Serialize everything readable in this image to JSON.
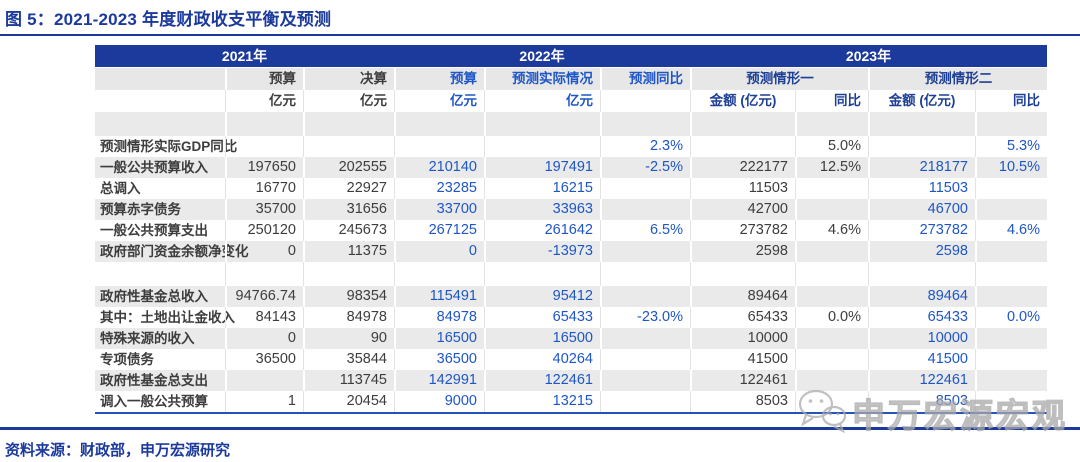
{
  "title": "图 5：2021-2023 年度财政收支平衡及预测",
  "source_note": "资料来源：财政部，申万宏源研究",
  "watermark": "申万宏源宏观",
  "colors": {
    "brand_navy": "#1c3a9c",
    "accent_blue": "#1e56c8",
    "text_dark": "#3d3d3d",
    "row_gray": "#eaeaea"
  },
  "table": {
    "year_groups": [
      {
        "label": "2021年"
      },
      {
        "label": "2022年"
      },
      {
        "label": "2023年"
      }
    ],
    "sub_headers": {
      "y21_budget": "预算",
      "y21_final": "决算",
      "y22_budget": "预算",
      "y22_actual": "预测实际情况",
      "y22_yoy": "预测同比",
      "scenario1": "预测情形一",
      "scenario2": "预测情形二"
    },
    "unit_headers": {
      "yi": "亿元",
      "amount": "金额 (亿元)",
      "yoy": "同比"
    },
    "col_classes": [
      "dark",
      "dark",
      "blue",
      "blue",
      "blue",
      "dark",
      "dark",
      "blue",
      "blue"
    ],
    "rows": [
      {
        "label": "",
        "bg": "gray",
        "spacer": true,
        "cells": [
          "",
          "",
          "",
          "",
          "",
          "",
          "",
          "",
          ""
        ]
      },
      {
        "label": "预测情形实际GDP同比",
        "bg": "white",
        "cells": [
          "",
          "",
          "",
          "",
          "2.3%",
          "",
          "5.0%",
          "",
          "5.3%"
        ]
      },
      {
        "label": "一般公共预算收入",
        "bg": "gray",
        "cells": [
          "197650",
          "202555",
          "210140",
          "197491",
          "-2.5%",
          "222177",
          "12.5%",
          "218177",
          "10.5%"
        ]
      },
      {
        "label": "总调入",
        "bg": "white",
        "cells": [
          "16770",
          "22927",
          "23285",
          "16215",
          "",
          "11503",
          "",
          "11503",
          ""
        ]
      },
      {
        "label": "预算赤字债务",
        "bg": "gray",
        "cells": [
          "35700",
          "31656",
          "33700",
          "33963",
          "",
          "42700",
          "",
          "46700",
          ""
        ]
      },
      {
        "label": "一般公共预算支出",
        "bg": "white",
        "cells": [
          "250120",
          "245673",
          "267125",
          "261642",
          "6.5%",
          "273782",
          "4.6%",
          "273782",
          "4.6%"
        ]
      },
      {
        "label": "政府部门资金余额净变化",
        "bg": "gray",
        "cells": [
          "0",
          "11375",
          "0",
          "-13973",
          "",
          "2598",
          "",
          "2598",
          ""
        ]
      },
      {
        "label": "",
        "bg": "white",
        "spacer": true,
        "cells": [
          "",
          "",
          "",
          "",
          "",
          "",
          "",
          "",
          ""
        ]
      },
      {
        "label": "政府性基金总收入",
        "bg": "gray",
        "cells": [
          "94766.74",
          "98354",
          "115491",
          "95412",
          "",
          "89464",
          "",
          "89464",
          ""
        ]
      },
      {
        "label": "其中：土地出让金收入",
        "bg": "white",
        "cells": [
          "84143",
          "84978",
          "84978",
          "65433",
          "-23.0%",
          "65433",
          "0.0%",
          "65433",
          "0.0%"
        ]
      },
      {
        "label": "特殊来源的收入",
        "bg": "gray",
        "cells": [
          "0",
          "90",
          "16500",
          "16500",
          "",
          "10000",
          "",
          "10000",
          ""
        ]
      },
      {
        "label": "专项债务",
        "bg": "white",
        "cells": [
          "36500",
          "35844",
          "36500",
          "40264",
          "",
          "41500",
          "",
          "41500",
          ""
        ]
      },
      {
        "label": "政府性基金总支出",
        "bg": "gray",
        "cells": [
          "",
          "113745",
          "142991",
          "122461",
          "",
          "122461",
          "",
          "122461",
          ""
        ]
      },
      {
        "label": "调入一般公共预算",
        "bg": "white",
        "cells": [
          "1",
          "20454",
          "9000",
          "13215",
          "",
          "8503",
          "",
          "8503",
          ""
        ]
      }
    ]
  }
}
